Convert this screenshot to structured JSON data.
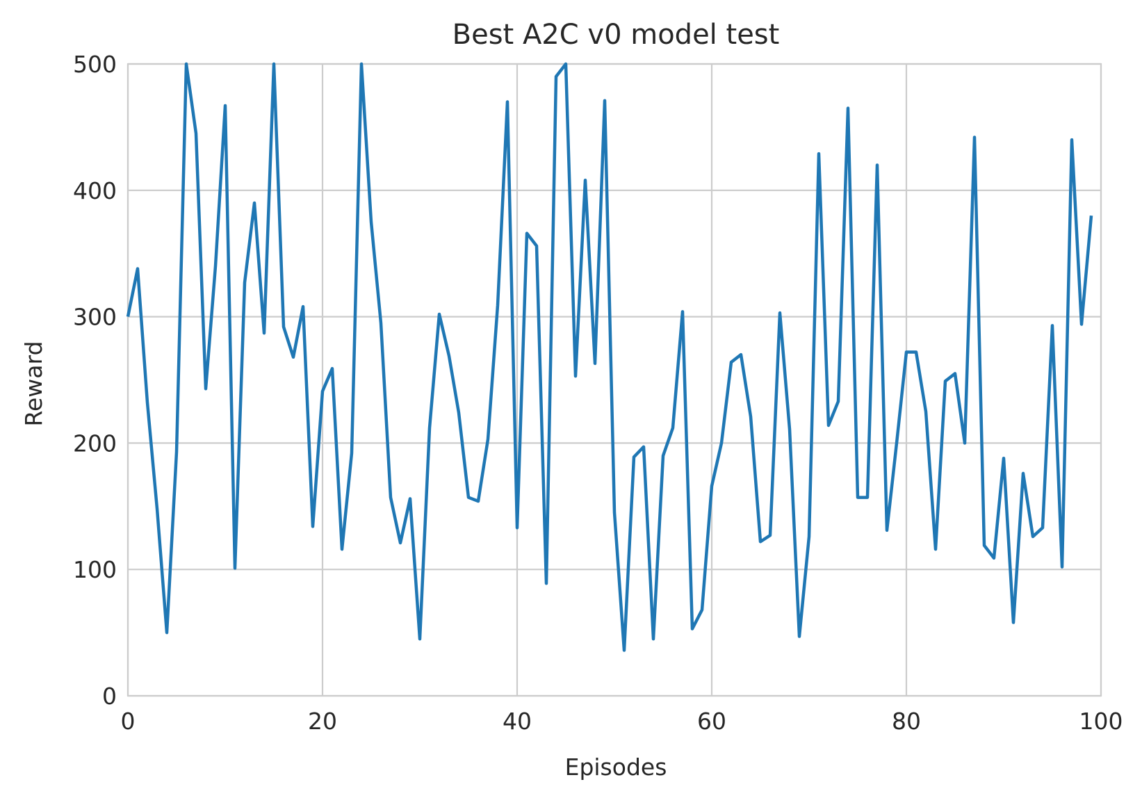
{
  "chart_data": {
    "type": "line",
    "title": "Best A2C v0 model test",
    "xlabel": "Episodes",
    "ylabel": "Reward",
    "xlim": [
      0,
      100
    ],
    "ylim": [
      0,
      500
    ],
    "xticks": [
      "0",
      "20",
      "40",
      "60",
      "80",
      "100"
    ],
    "yticks": [
      "0",
      "100",
      "200",
      "300",
      "400",
      "500"
    ],
    "xtick_values": [
      0,
      20,
      40,
      60,
      80,
      100
    ],
    "ytick_values": [
      0,
      100,
      200,
      300,
      400,
      500
    ],
    "grid": true,
    "series_color": "#1f77b4",
    "series": [
      {
        "x": [
          0,
          1,
          2,
          3,
          4,
          5,
          6,
          7,
          8,
          9,
          10,
          11,
          12,
          13,
          14,
          15,
          16,
          17,
          18,
          19,
          20,
          21,
          22,
          23,
          24,
          25,
          26,
          27,
          28,
          29,
          30,
          31,
          32,
          33,
          34,
          35,
          36,
          37,
          38,
          39,
          40,
          41,
          42,
          43,
          44,
          45,
          46,
          47,
          48,
          49,
          50,
          51,
          52,
          53,
          54,
          55,
          56,
          57,
          58,
          59,
          60,
          61,
          62,
          63,
          64,
          65,
          66,
          67,
          68,
          69,
          70,
          71,
          72,
          73,
          74,
          75,
          76,
          77,
          78,
          79,
          80,
          81,
          82,
          83,
          84,
          85,
          86,
          87,
          88,
          89,
          90,
          91,
          92,
          93,
          94,
          95,
          96,
          97,
          98,
          99
        ],
        "values": [
          300,
          338,
          232,
          148,
          50,
          193,
          500,
          445,
          243,
          340,
          467,
          101,
          327,
          390,
          287,
          500,
          292,
          268,
          308,
          134,
          241,
          259,
          116,
          192,
          500,
          375,
          295,
          157,
          121,
          156,
          45,
          212,
          302,
          269,
          224,
          157,
          154,
          203,
          309,
          470,
          133,
          366,
          356,
          89,
          490,
          500,
          253,
          408,
          263,
          471,
          145,
          36,
          189,
          197,
          45,
          190,
          212,
          304,
          53,
          68,
          166,
          200,
          264,
          270,
          221,
          122,
          127,
          303,
          211,
          47,
          126,
          429,
          214,
          233,
          465,
          157,
          157,
          420,
          131,
          200,
          272,
          272,
          225,
          116,
          249,
          255,
          200,
          442,
          119,
          109,
          188,
          58,
          176,
          126,
          133,
          293,
          102,
          440,
          294,
          380
        ]
      }
    ]
  }
}
